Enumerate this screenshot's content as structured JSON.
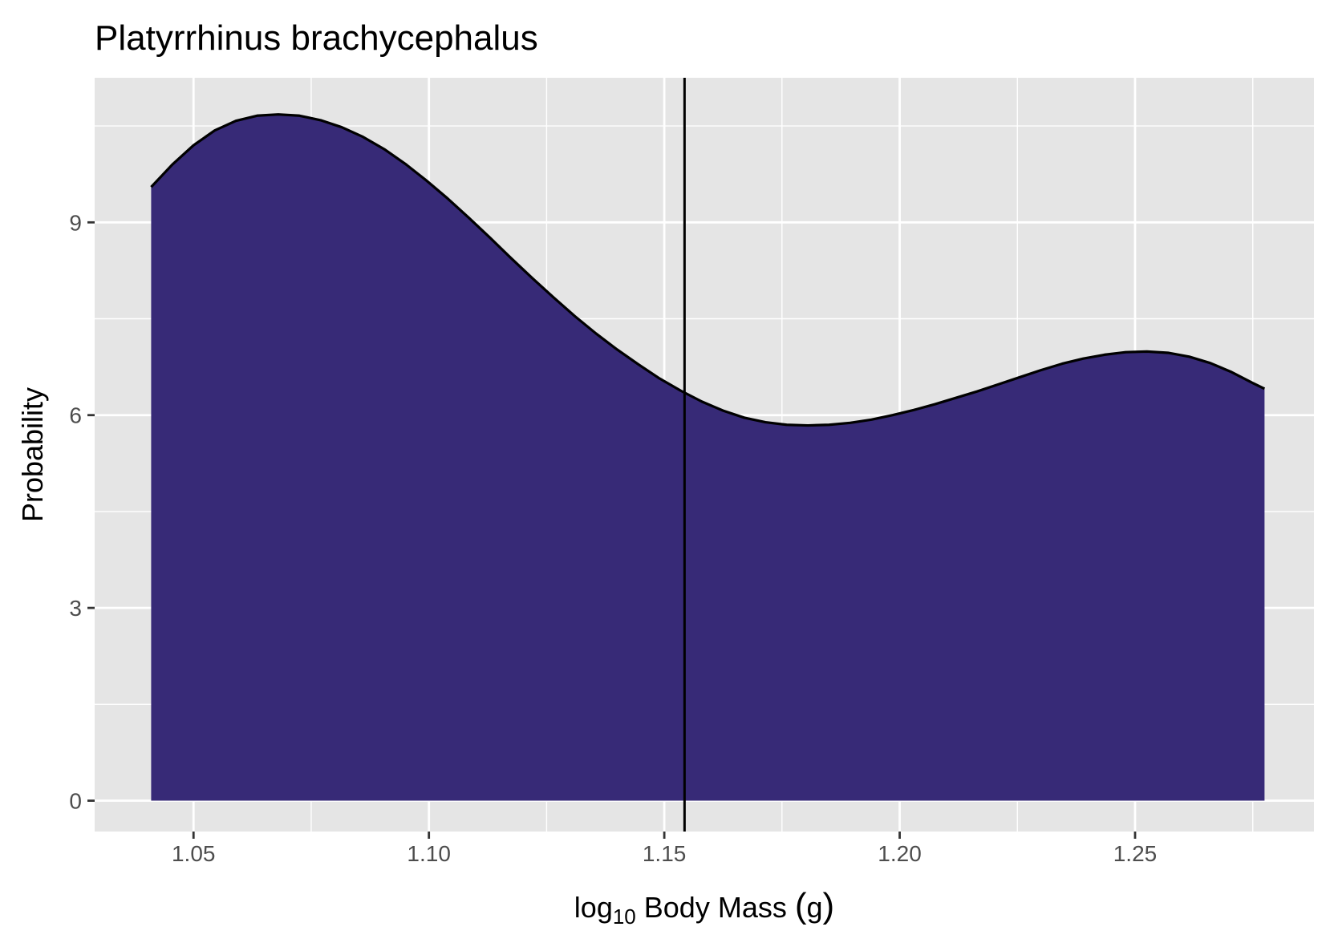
{
  "chart_data": {
    "type": "area",
    "title": "Platyrrhinus brachycephalus",
    "xlabel": {
      "prefix": "log",
      "subscript": "10",
      "suffix": " Body Mass ",
      "paren_open": "(",
      "unit": "g",
      "paren_close": ")"
    },
    "ylabel": "Probability",
    "xlim": [
      1.029,
      1.288
    ],
    "ylim": [
      -0.48,
      11.25
    ],
    "x_ticks": [
      1.05,
      1.1,
      1.15,
      1.2,
      1.25
    ],
    "x_tick_labels": [
      "1.05",
      "1.10",
      "1.15",
      "1.20",
      "1.25"
    ],
    "x_minor_ticks": [
      1.075,
      1.125,
      1.175,
      1.225,
      1.275
    ],
    "y_ticks": [
      0,
      3,
      6,
      9
    ],
    "y_tick_labels": [
      "0",
      "3",
      "6",
      "9"
    ],
    "y_minor_ticks": [
      1.5,
      4.5,
      7.5,
      10.5
    ],
    "grid": true,
    "legend": "none",
    "fill_color": "#372a77",
    "line_color": "#000000",
    "panel_background": "#e5e5e5",
    "vline_x": 1.1543,
    "density": {
      "x": [
        1.041,
        1.0455,
        1.05,
        1.0545,
        1.059,
        1.0635,
        1.068,
        1.0725,
        1.077,
        1.0815,
        1.086,
        1.0905,
        1.095,
        1.0995,
        1.104,
        1.1085,
        1.113,
        1.1175,
        1.122,
        1.1265,
        1.131,
        1.1355,
        1.14,
        1.1445,
        1.149,
        1.1535,
        1.158,
        1.1625,
        1.167,
        1.1715,
        1.176,
        1.1805,
        1.185,
        1.1895,
        1.194,
        1.1985,
        1.203,
        1.2075,
        1.212,
        1.2165,
        1.221,
        1.2255,
        1.23,
        1.2345,
        1.239,
        1.2435,
        1.248,
        1.2525,
        1.257,
        1.2615,
        1.266,
        1.2705,
        1.275,
        1.2775
      ],
      "y": [
        9.55,
        9.9,
        10.2,
        10.43,
        10.58,
        10.66,
        10.68,
        10.66,
        10.59,
        10.48,
        10.33,
        10.14,
        9.91,
        9.65,
        9.37,
        9.07,
        8.76,
        8.44,
        8.13,
        7.83,
        7.54,
        7.27,
        7.02,
        6.79,
        6.57,
        6.38,
        6.21,
        6.07,
        5.96,
        5.89,
        5.85,
        5.84,
        5.85,
        5.88,
        5.93,
        6.0,
        6.08,
        6.17,
        6.27,
        6.37,
        6.48,
        6.59,
        6.7,
        6.8,
        6.88,
        6.94,
        6.98,
        6.99,
        6.97,
        6.91,
        6.81,
        6.67,
        6.5,
        6.41
      ]
    }
  }
}
